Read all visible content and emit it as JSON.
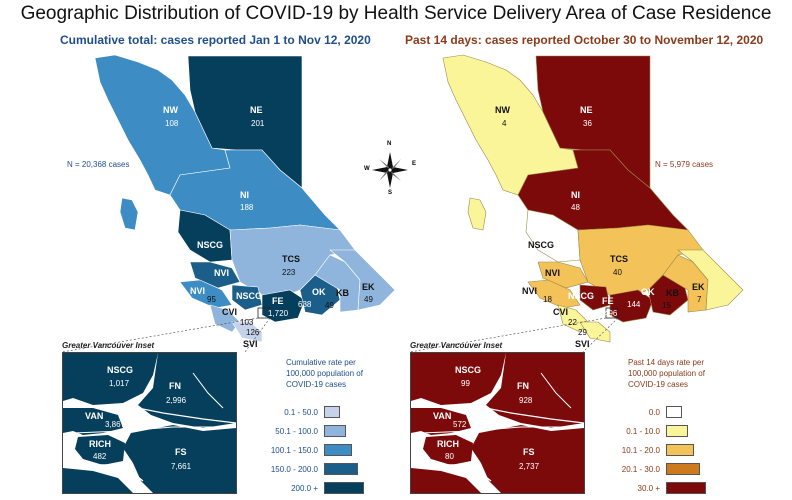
{
  "title": "Geographic Distribution of COVID-19 by Health Service Delivery Area of Case Residence",
  "left_map": {
    "subtitle": "Cumulative total: cases reported Jan 1 to Nov 12, 2020",
    "n_cases": "N = 20,368 cases",
    "regions": [
      {
        "code": "NW",
        "value": "108"
      },
      {
        "code": "NE",
        "value": "201"
      },
      {
        "code": "NI",
        "value": "188"
      },
      {
        "code": "NSCG",
        "value": ""
      },
      {
        "code": "NVI",
        "value": ""
      },
      {
        "code": "TCS",
        "value": "223"
      },
      {
        "code": "NVI",
        "value": "95"
      },
      {
        "code": "NSCG",
        "value": ""
      },
      {
        "code": "FE",
        "value": "1,720"
      },
      {
        "code": "OK",
        "value": "638"
      },
      {
        "code": "KB",
        "value": "49"
      },
      {
        "code": "EK",
        "value": "49"
      },
      {
        "code": "CVI",
        "value": "103"
      },
      {
        "code": "SVI",
        "value": "126"
      }
    ],
    "inset_title": "Greater Vancouver Inset",
    "inset": [
      {
        "code": "NSCG",
        "value": "1,017"
      },
      {
        "code": "FN",
        "value": "2,996"
      },
      {
        "code": "VAN",
        "value": "3,867"
      },
      {
        "code": "RICH",
        "value": "482"
      },
      {
        "code": "FS",
        "value": "7,661"
      }
    ],
    "legend_title": "Cumulative rate per 100,000 population of COVID-19 cases",
    "legend": [
      {
        "label": "0.1 - 50.0",
        "color": "#c5d3ea"
      },
      {
        "label": "50.1 - 100.0",
        "color": "#8fb5dc"
      },
      {
        "label": "100.1 - 150.0",
        "color": "#3d8cc4"
      },
      {
        "label": "150.0 - 200.0",
        "color": "#1b5e8a"
      },
      {
        "label": "200.0 +",
        "color": "#063f5c"
      }
    ]
  },
  "right_map": {
    "subtitle": "Past 14 days: cases reported October 30 to November 12, 2020",
    "n_cases": "N = 5,979 cases",
    "regions": [
      {
        "code": "NW",
        "value": "4"
      },
      {
        "code": "NE",
        "value": "36"
      },
      {
        "code": "NI",
        "value": "48"
      },
      {
        "code": "NSCG",
        "value": ""
      },
      {
        "code": "TCS",
        "value": "40"
      },
      {
        "code": "NVI",
        "value": ""
      },
      {
        "code": "NVI",
        "value": "18"
      },
      {
        "code": "NSCG",
        "value": ""
      },
      {
        "code": "FE",
        "value": "496"
      },
      {
        "code": "OK",
        "value": "144"
      },
      {
        "code": "KB",
        "value": "15"
      },
      {
        "code": "EK",
        "value": "7"
      },
      {
        "code": "CVI",
        "value": "22"
      },
      {
        "code": "SVI",
        "value": "29"
      }
    ],
    "inset_title": "Greater Vancouver Inset",
    "inset": [
      {
        "code": "NSCG",
        "value": "99"
      },
      {
        "code": "FN",
        "value": "928"
      },
      {
        "code": "VAN",
        "value": "572"
      },
      {
        "code": "RICH",
        "value": "80"
      },
      {
        "code": "FS",
        "value": "2,737"
      }
    ],
    "legend_title": "Past 14 days rate per 100,000 population of COVID-19 cases",
    "legend": [
      {
        "label": "0.0",
        "color": "#ffffff"
      },
      {
        "label": "0.1 - 10.0",
        "color": "#fbf59a"
      },
      {
        "label": "10.1 - 20.0",
        "color": "#f3c35a"
      },
      {
        "label": "20.1 - 30.0",
        "color": "#cc7a1c"
      },
      {
        "label": "30.0 +",
        "color": "#7d0a0a"
      }
    ]
  },
  "compass": {
    "n": "N",
    "s": "S",
    "e": "E",
    "w": "W"
  }
}
